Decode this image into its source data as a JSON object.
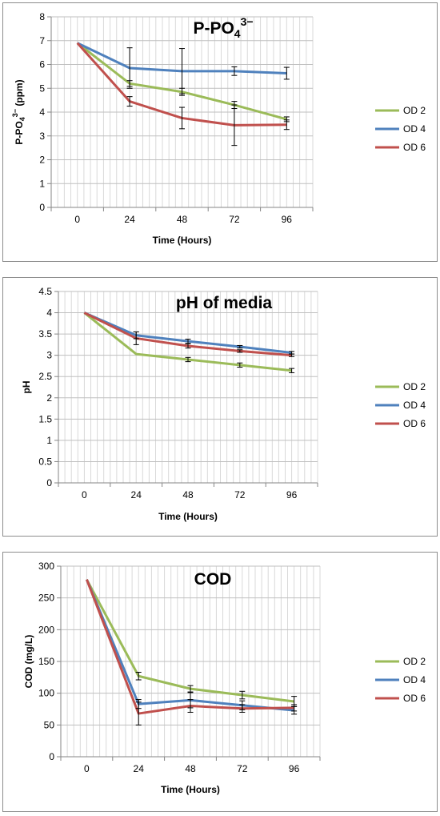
{
  "chart_data": [
    {
      "type": "line",
      "title": "P-PO",
      "title_sub": "4",
      "title_sup": "3−",
      "xlabel": "Time (Hours)",
      "ylabel": "P-PO",
      "ylabel_sub": "4",
      "ylabel_sup": "3−",
      "ylabel_unit": " (ppm)",
      "x": [
        0,
        24,
        48,
        72,
        96
      ],
      "x_tick_labels": [
        "0",
        "24",
        "48",
        "72",
        "96"
      ],
      "ylim": [
        0,
        8
      ],
      "y_ticks": [
        0,
        1,
        2,
        3,
        4,
        5,
        6,
        7,
        8
      ],
      "y_tick_labels": [
        "0",
        "1",
        "2",
        "3",
        "4",
        "5",
        "6",
        "7",
        "8"
      ],
      "grid": true,
      "legend": "right",
      "series": [
        {
          "name": "OD 2",
          "color": "#9bbb59",
          "values": [
            6.9,
            5.2,
            4.85,
            4.3,
            3.7
          ],
          "errors": [
            0,
            0.12,
            0.15,
            0.15,
            0.1
          ]
        },
        {
          "name": "OD 4",
          "color": "#4f81bd",
          "values": [
            6.9,
            5.85,
            5.72,
            5.72,
            5.63
          ],
          "errors": [
            0,
            0.85,
            0.95,
            0.18,
            0.25
          ]
        },
        {
          "name": "OD 6",
          "color": "#c0504d",
          "values": [
            6.9,
            4.45,
            3.75,
            3.45,
            3.47
          ],
          "errors": [
            0,
            0.2,
            0.45,
            0.85,
            0.2
          ]
        }
      ]
    },
    {
      "type": "line",
      "title": "pH of media",
      "xlabel": "Time (Hours)",
      "ylabel": "pH",
      "x": [
        0,
        24,
        48,
        72,
        96
      ],
      "x_tick_labels": [
        "0",
        "24",
        "48",
        "72",
        "96"
      ],
      "ylim": [
        0,
        4.5
      ],
      "y_ticks": [
        0,
        0.5,
        1,
        1.5,
        2,
        2.5,
        3,
        3.5,
        4,
        4.5
      ],
      "y_tick_labels": [
        "0",
        "0.5",
        "1",
        "1.5",
        "2",
        "2.5",
        "3",
        "3.5",
        "4",
        "4.5"
      ],
      "grid": true,
      "legend": "right",
      "series": [
        {
          "name": "OD 2",
          "color": "#9bbb59",
          "values": [
            4.0,
            3.03,
            2.9,
            2.77,
            2.64
          ],
          "errors": [
            0,
            0,
            0.05,
            0.05,
            0.05
          ]
        },
        {
          "name": "OD 4",
          "color": "#4f81bd",
          "values": [
            4.0,
            3.47,
            3.33,
            3.2,
            3.06
          ],
          "errors": [
            0,
            0.08,
            0.05,
            0.03,
            0.03
          ]
        },
        {
          "name": "OD 6",
          "color": "#c0504d",
          "values": [
            4.0,
            3.4,
            3.22,
            3.1,
            3.0
          ],
          "errors": [
            0,
            0.15,
            0.05,
            0.03,
            0.03
          ]
        }
      ]
    },
    {
      "type": "line",
      "title": "COD",
      "xlabel": "Time (Hours)",
      "ylabel": "COD (mg/L)",
      "x": [
        0,
        24,
        48,
        72,
        96
      ],
      "x_tick_labels": [
        "0",
        "24",
        "48",
        "72",
        "96"
      ],
      "ylim": [
        0,
        300
      ],
      "y_ticks": [
        0,
        50,
        100,
        150,
        200,
        250,
        300
      ],
      "y_tick_labels": [
        "0",
        "50",
        "100",
        "150",
        "200",
        "250",
        "300"
      ],
      "grid": true,
      "legend": "right",
      "series": [
        {
          "name": "OD 2",
          "color": "#9bbb59",
          "values": [
            279,
            127,
            107,
            97,
            87
          ],
          "errors": [
            0,
            6,
            5,
            6,
            8
          ]
        },
        {
          "name": "OD 4",
          "color": "#4f81bd",
          "values": [
            279,
            83,
            89,
            81,
            73
          ],
          "errors": [
            0,
            7,
            12,
            7,
            6
          ]
        },
        {
          "name": "OD 6",
          "color": "#c0504d",
          "values": [
            279,
            68,
            80,
            76,
            77
          ],
          "errors": [
            0,
            18,
            10,
            6,
            5
          ]
        }
      ]
    }
  ]
}
